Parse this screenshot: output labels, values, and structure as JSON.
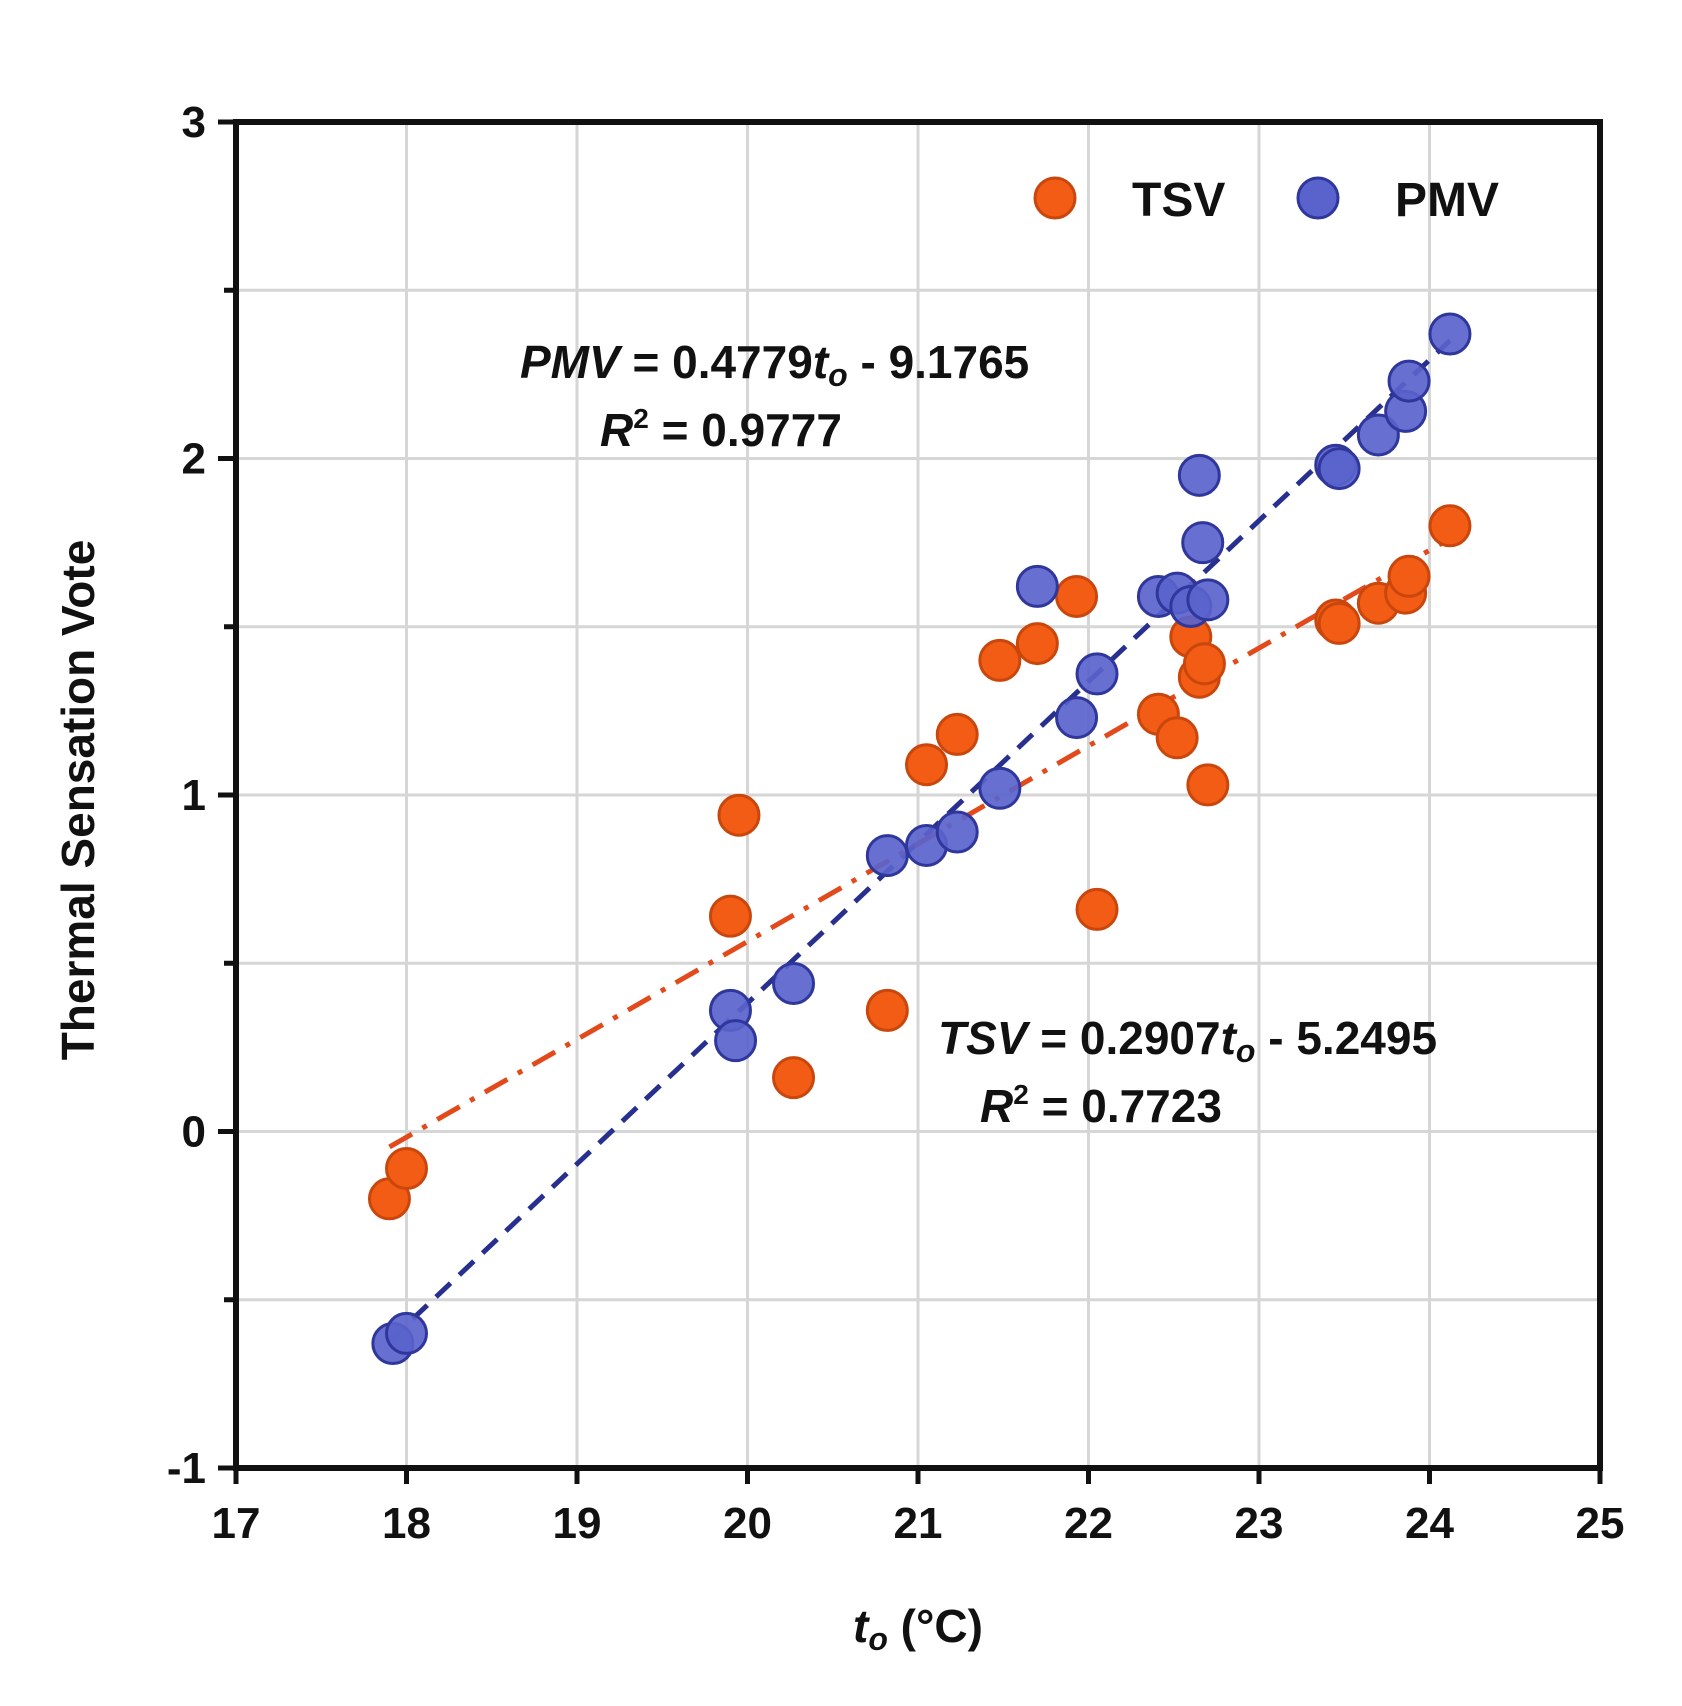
{
  "chart_data": {
    "type": "scatter",
    "xlabel": {
      "main": "t",
      "sub": "o",
      "unit": " (°C)"
    },
    "ylabel": "Thermal Sensation Vote",
    "xlim": [
      17,
      25
    ],
    "ylim": [
      -1,
      3
    ],
    "xticks": [
      17,
      18,
      19,
      20,
      21,
      22,
      23,
      24,
      25
    ],
    "yticks": [
      -1,
      0,
      1,
      2,
      3
    ],
    "yminor_step": 0.5,
    "grid": true,
    "legend": {
      "position": "top-right",
      "entries": [
        "TSV",
        "PMV"
      ]
    },
    "colors": {
      "TSV": "#f25c14",
      "PMV": "#5a63cc",
      "pmv_fit": "#27308f",
      "tsv_fit": "#e24a1c",
      "grid": "#d6d6d6",
      "axis": "#111111"
    },
    "series": [
      {
        "name": "TSV",
        "points": [
          [
            17.9,
            -0.2
          ],
          [
            18.0,
            -0.11
          ],
          [
            19.9,
            0.64
          ],
          [
            19.95,
            0.94
          ],
          [
            20.27,
            0.16
          ],
          [
            20.82,
            0.36
          ],
          [
            21.05,
            1.09
          ],
          [
            21.23,
            1.18
          ],
          [
            21.48,
            1.4
          ],
          [
            21.7,
            1.45
          ],
          [
            21.93,
            1.59
          ],
          [
            22.05,
            0.66
          ],
          [
            22.41,
            1.24
          ],
          [
            22.52,
            1.17
          ],
          [
            22.6,
            1.47
          ],
          [
            22.65,
            1.35
          ],
          [
            22.68,
            1.39
          ],
          [
            22.7,
            1.03
          ],
          [
            23.45,
            1.52
          ],
          [
            23.47,
            1.51
          ],
          [
            23.7,
            1.57
          ],
          [
            23.86,
            1.6
          ],
          [
            23.88,
            1.65
          ],
          [
            24.12,
            1.8
          ]
        ]
      },
      {
        "name": "PMV",
        "points": [
          [
            17.92,
            -0.63
          ],
          [
            18.0,
            -0.6
          ],
          [
            19.9,
            0.36
          ],
          [
            19.93,
            0.27
          ],
          [
            20.27,
            0.44
          ],
          [
            20.82,
            0.82
          ],
          [
            21.05,
            0.85
          ],
          [
            21.23,
            0.89
          ],
          [
            21.48,
            1.02
          ],
          [
            21.7,
            1.62
          ],
          [
            21.93,
            1.23
          ],
          [
            22.05,
            1.36
          ],
          [
            22.41,
            1.59
          ],
          [
            22.52,
            1.6
          ],
          [
            22.6,
            1.56
          ],
          [
            22.65,
            1.95
          ],
          [
            22.67,
            1.75
          ],
          [
            22.7,
            1.58
          ],
          [
            23.45,
            1.98
          ],
          [
            23.47,
            1.97
          ],
          [
            23.7,
            2.07
          ],
          [
            23.86,
            2.14
          ],
          [
            23.88,
            2.23
          ],
          [
            24.12,
            2.37
          ]
        ]
      }
    ],
    "fits": [
      {
        "name": "PMV",
        "slope": 0.4779,
        "intercept": -9.1765,
        "x_range": [
          17.9,
          24.12
        ],
        "style": "dashed"
      },
      {
        "name": "TSV",
        "slope": 0.2907,
        "intercept": -5.2495,
        "x_range": [
          17.9,
          24.12
        ],
        "style": "dashdot"
      }
    ],
    "annotations": {
      "pmv_eq": {
        "lhs": "PMV",
        "mid": " = 0.4779",
        "var": "t",
        "sub": "o",
        "rhs": " - 9.1765"
      },
      "pmv_r2": {
        "r": "R",
        "sup": "2",
        "rhs": " = 0.9777"
      },
      "tsv_eq": {
        "lhs": "TSV",
        "mid": " = 0.2907",
        "var": "t",
        "sub": "o",
        "rhs": " - 5.2495"
      },
      "tsv_r2": {
        "r": "R",
        "sup": "2",
        "rhs": " = 0.7723"
      }
    }
  }
}
